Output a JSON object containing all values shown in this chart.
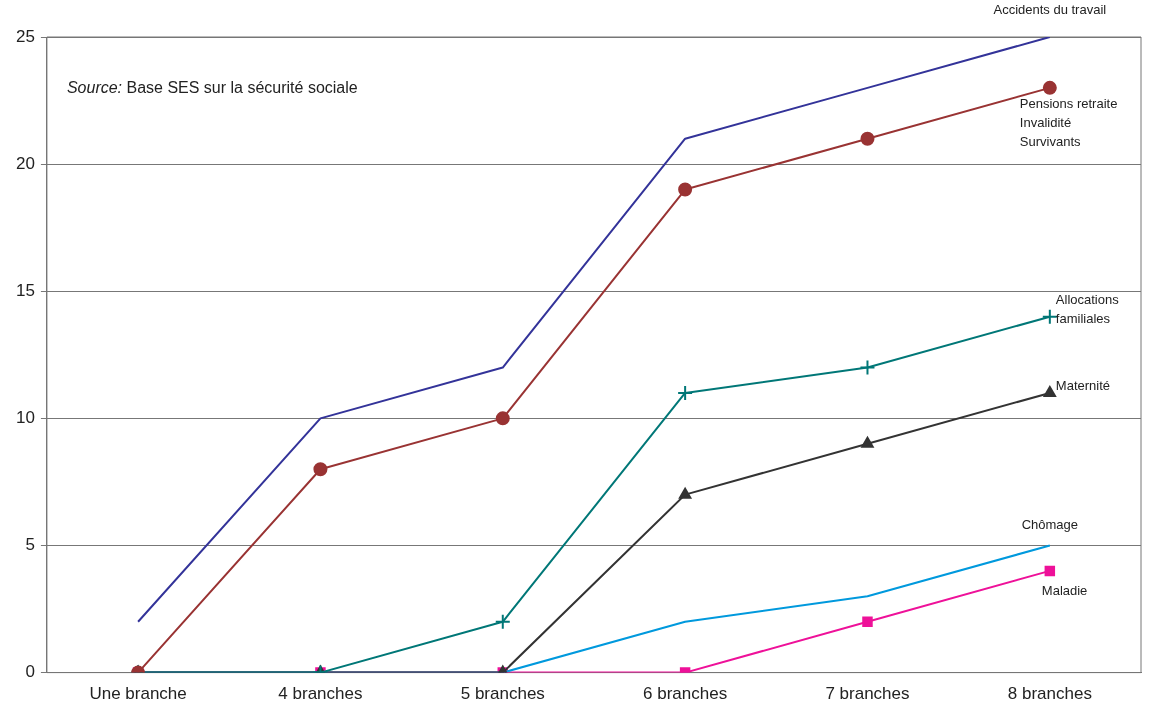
{
  "chart_data": {
    "type": "line",
    "categories": [
      "Une branche",
      "4 branches",
      "5 branches",
      "6 branches",
      "7 branches",
      "8 branches"
    ],
    "series": [
      {
        "name": "Accidents du travail",
        "color": "#333399",
        "marker": "none",
        "values": [
          2,
          10,
          12,
          21,
          23,
          25
        ]
      },
      {
        "name": "Pensions retraite\nInvalidité\nSurvivants",
        "color": "#993333",
        "marker": "circle",
        "values": [
          0,
          8,
          10,
          19,
          21,
          23
        ]
      },
      {
        "name": "Allocations\nfamiliales",
        "color": "#007777",
        "marker": "cross",
        "values": [
          0,
          0,
          2,
          11,
          12,
          14
        ]
      },
      {
        "name": "Maternité",
        "color": "#333333",
        "marker": "triangle",
        "values": [
          0,
          0,
          0,
          7,
          9,
          11
        ]
      },
      {
        "name": "Chômage",
        "color": "#0099dd",
        "marker": "none",
        "values": [
          0,
          0,
          0,
          2,
          3,
          5
        ]
      },
      {
        "name": "Maladie",
        "color": "#ee1199",
        "marker": "square",
        "values": [
          0,
          0,
          0,
          0,
          2,
          4
        ]
      }
    ],
    "ylim": [
      0,
      25
    ],
    "yticks": [
      0,
      5,
      10,
      15,
      20,
      25
    ],
    "grid": "y",
    "legend": false,
    "annotations": [
      "Source: Base SES sur la sécurité sociale"
    ]
  }
}
